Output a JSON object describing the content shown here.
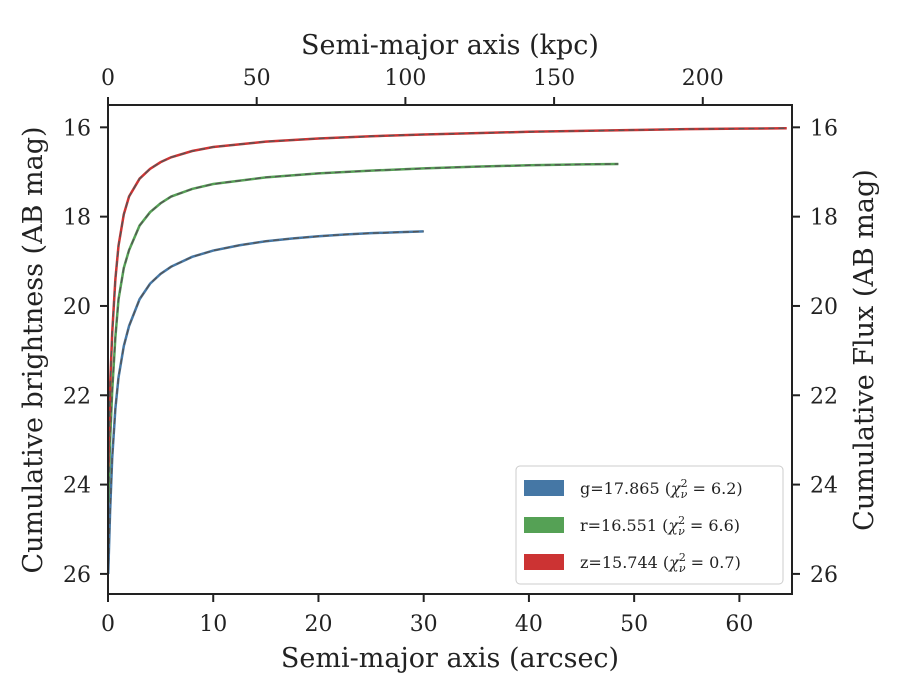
{
  "chart_data": {
    "type": "line",
    "xlabel": "Semi-major axis (arcsec)",
    "ylabel": "Cumulative brightness (AB mag)",
    "top_xlabel": "Semi-major axis (kpc)",
    "right_ylabel": "Cumulative Flux (AB mag)",
    "xlim": [
      0,
      65
    ],
    "ylim": [
      26.45,
      15.5
    ],
    "y_inverted": true,
    "top_xlim": [
      0,
      230
    ],
    "x_ticks": [
      0,
      10,
      20,
      30,
      40,
      50,
      60
    ],
    "y_ticks": [
      16,
      18,
      20,
      22,
      24,
      26
    ],
    "top_x_ticks": [
      0,
      50,
      100,
      150,
      200
    ],
    "right_y_ticks": [
      16,
      18,
      20,
      22,
      24,
      26
    ],
    "grid": false,
    "legend_position": "lower-right",
    "series": [
      {
        "name": "g=17.865 (χ²ν = 6.2)",
        "legend_main": "g=17.865 (",
        "legend_sym": "χ",
        "legend_sup": "2",
        "legend_sub": "ν",
        "legend_tail": " = 6.2)",
        "color": "#4577a5",
        "x": [
          0.02,
          0.2,
          0.4,
          0.7,
          1.0,
          1.5,
          2.0,
          3.0,
          4.0,
          5.0,
          6.0,
          8.0,
          10.0,
          12.5,
          15.0,
          17.5,
          20.0,
          22.5,
          25.0,
          27.5,
          30.0
        ],
        "y": [
          26.0,
          24.6,
          23.4,
          22.3,
          21.6,
          20.9,
          20.45,
          19.85,
          19.5,
          19.28,
          19.12,
          18.9,
          18.76,
          18.64,
          18.55,
          18.49,
          18.44,
          18.4,
          18.37,
          18.35,
          18.33
        ]
      },
      {
        "name": "r=16.551 (χ²ν = 6.6)",
        "legend_main": "r=16.551 (",
        "legend_sym": "χ",
        "legend_sup": "2",
        "legend_sub": "ν",
        "legend_tail": " = 6.6)",
        "color": "#55a155",
        "x": [
          0.02,
          0.2,
          0.4,
          0.7,
          1.0,
          1.5,
          2.0,
          3.0,
          4.0,
          5.0,
          6.0,
          8.0,
          10.0,
          15.0,
          20.0,
          25.0,
          30.0,
          35.0,
          40.0,
          45.0,
          48.5
        ],
        "y": [
          24.4,
          23.0,
          21.9,
          20.7,
          19.85,
          19.15,
          18.75,
          18.2,
          17.9,
          17.7,
          17.55,
          17.38,
          17.27,
          17.12,
          17.03,
          16.97,
          16.92,
          16.88,
          16.85,
          16.83,
          16.82
        ]
      },
      {
        "name": "z=15.744 (χ²ν = 0.7)",
        "legend_main": "z=15.744 (",
        "legend_sym": "χ",
        "legend_sup": "2",
        "legend_sub": "ν",
        "legend_tail": " = 0.7)",
        "color": "#cc3333",
        "x": [
          0.02,
          0.2,
          0.4,
          0.7,
          1.0,
          1.5,
          2.0,
          3.0,
          4.0,
          5.0,
          6.0,
          8.0,
          10.0,
          15.0,
          20.0,
          25.0,
          30.0,
          35.0,
          40.0,
          45.0,
          50.0,
          55.0,
          60.0,
          64.5
        ],
        "y": [
          23.6,
          21.8,
          20.6,
          19.4,
          18.65,
          17.95,
          17.55,
          17.15,
          16.93,
          16.78,
          16.67,
          16.53,
          16.44,
          16.32,
          16.25,
          16.2,
          16.16,
          16.13,
          16.1,
          16.08,
          16.06,
          16.04,
          16.03,
          16.02
        ]
      }
    ]
  }
}
